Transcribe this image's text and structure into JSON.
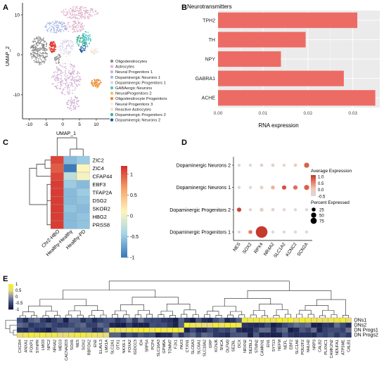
{
  "panels": {
    "A": "A",
    "B": "B",
    "C": "C",
    "D": "D",
    "E": "E"
  },
  "chart_data": [
    {
      "panel": "A",
      "type": "scatter",
      "xlabel": "UMAP_1",
      "ylabel": "UMAP_2",
      "xlim": [
        -12,
        14
      ],
      "ylim": [
        -16,
        13
      ],
      "xticks": [
        -10,
        -5,
        0,
        5,
        10
      ],
      "yticks": [
        -10,
        0,
        10
      ],
      "legend_position": "right",
      "series": [
        {
          "name": "Oligodendrocytes",
          "color": "#8c8c8c"
        },
        {
          "name": "Astrocytes",
          "color": "#e0b6ce"
        },
        {
          "name": "Neural Progenitors 1",
          "color": "#d2b0d6"
        },
        {
          "name": "Dopaminergic Neurons 1",
          "color": "#a7b8e6"
        },
        {
          "name": "Dopaminergic Progenitors 1",
          "color": "#e0d2ea"
        },
        {
          "name": "GABAergic Neurons",
          "color": "#52c4c6"
        },
        {
          "name": "NeuralProgenitors 2",
          "color": "#efc060"
        },
        {
          "name": "Oligodendrocyte Progenitors",
          "color": "#ee8833"
        },
        {
          "name": "Neural Progenitors 3",
          "color": "#eeeeee"
        },
        {
          "name": "Reactive Astrocytes",
          "color": "#f0e2d4"
        },
        {
          "name": "Dopaminergic Progenitors 2",
          "color": "#3bb099"
        },
        {
          "name": "Dopaminergic Neurons 2",
          "color": "#1e5a9a"
        }
      ]
    },
    {
      "panel": "B",
      "type": "bar",
      "title": "Neurotransmitters",
      "xlabel": "RNA expression",
      "ylabel": "",
      "orientation": "horizontal",
      "categories": [
        "TPH2",
        "TH",
        "NPY",
        "GABRA1",
        "ACHE"
      ],
      "values": [
        0.031,
        0.0195,
        0.014,
        0.028,
        0.035
      ],
      "xlim": [
        0,
        0.036
      ],
      "xticks": [
        "0.00",
        "0.01",
        "0.02",
        "0.03"
      ],
      "color": "#ec6c65"
    },
    {
      "panel": "C",
      "type": "heatmap",
      "columns": [
        "Chr2-HBO",
        "Healthy-Healthy",
        "Healthy-PD"
      ],
      "rows": [
        "ZIC2",
        "ZIC4",
        "CFAP44",
        "EBF3",
        "TFAP2A",
        "DSG2",
        "SKOR2",
        "HBG2",
        "PRSS8"
      ],
      "values": [
        [
          1.1,
          -0.6,
          -0.5
        ],
        [
          1.0,
          -1.0,
          0.1
        ],
        [
          1.1,
          -0.3,
          0.05
        ],
        [
          1.15,
          -0.5,
          -0.6
        ],
        [
          1.15,
          -0.6,
          -0.5
        ],
        [
          1.15,
          -0.6,
          -0.55
        ],
        [
          1.15,
          -0.55,
          -0.6
        ],
        [
          1.15,
          -0.6,
          -0.55
        ],
        [
          1.15,
          -0.6,
          -0.55
        ]
      ],
      "scale_range": [
        -1,
        1.2
      ],
      "scale_ticks": [
        "1",
        "0.5",
        "0",
        "-0.5",
        "-1"
      ],
      "colors": [
        "#3f7ab9",
        "#a4d4e8",
        "#fdf5bd",
        "#f7a56a",
        "#d6312d"
      ]
    },
    {
      "panel": "D",
      "type": "scatter",
      "subtype": "dot",
      "rows": [
        "Dopaminergic Neurons 2",
        "Dopaminergic Neurons 1",
        "Dopaminergic Progenitors 2",
        "Dopaminergic Progenitors 1"
      ],
      "columns": [
        "NES",
        "SOX2",
        "RPX4",
        "NR4A2",
        "SLC1A2",
        "KCNC2",
        "SCN2A"
      ],
      "avg_expr_title": "Average Expression",
      "avg_expr_ticks": [
        "1.0",
        "0.5",
        "0.0",
        "-0.5"
      ],
      "pct_title": "Percent Expressed",
      "pct_ticks": [
        "25",
        "50",
        "75"
      ],
      "points": [
        {
          "row": "Dopaminergic Neurons 2",
          "col": "NES",
          "pct": 3,
          "expr": -0.4
        },
        {
          "row": "Dopaminergic Neurons 2",
          "col": "SOX2",
          "pct": 3,
          "expr": -0.4
        },
        {
          "row": "Dopaminergic Neurons 2",
          "col": "RPX4",
          "pct": 4,
          "expr": -0.2
        },
        {
          "row": "Dopaminergic Neurons 2",
          "col": "NR4A2",
          "pct": 4,
          "expr": -0.2
        },
        {
          "row": "Dopaminergic Neurons 2",
          "col": "SLC1A2",
          "pct": 3,
          "expr": -0.3
        },
        {
          "row": "Dopaminergic Neurons 2",
          "col": "KCNC2",
          "pct": 4,
          "expr": 0.0
        },
        {
          "row": "Dopaminergic Neurons 2",
          "col": "SCN2A",
          "pct": 12,
          "expr": 0.8
        },
        {
          "row": "Dopaminergic Neurons 1",
          "col": "NES",
          "pct": 3,
          "expr": -0.4
        },
        {
          "row": "Dopaminergic Neurons 1",
          "col": "SOX2",
          "pct": 3,
          "expr": -0.4
        },
        {
          "row": "Dopaminergic Neurons 1",
          "col": "RPX4",
          "pct": 5,
          "expr": -0.3
        },
        {
          "row": "Dopaminergic Neurons 1",
          "col": "NR4A2",
          "pct": 6,
          "expr": 0.2
        },
        {
          "row": "Dopaminergic Neurons 1",
          "col": "SLC1A2",
          "pct": 8,
          "expr": 0.9
        },
        {
          "row": "Dopaminergic Neurons 1",
          "col": "KCNC2",
          "pct": 8,
          "expr": 0.7
        },
        {
          "row": "Dopaminergic Neurons 1",
          "col": "SCN2A",
          "pct": 12,
          "expr": 0.8
        },
        {
          "row": "Dopaminergic Progenitors 2",
          "col": "NES",
          "pct": 8,
          "expr": 1.0
        },
        {
          "row": "Dopaminergic Progenitors 2",
          "col": "SOX2",
          "pct": 3,
          "expr": -0.4
        },
        {
          "row": "Dopaminergic Progenitors 2",
          "col": "RPX4",
          "pct": 6,
          "expr": -0.2
        },
        {
          "row": "Dopaminergic Progenitors 2",
          "col": "NR4A2",
          "pct": 4,
          "expr": -0.3
        },
        {
          "row": "Dopaminergic Progenitors 2",
          "col": "SLC1A2",
          "pct": 3,
          "expr": -0.4
        },
        {
          "row": "Dopaminergic Progenitors 2",
          "col": "KCNC2",
          "pct": 3,
          "expr": -0.4
        },
        {
          "row": "Dopaminergic Progenitors 2",
          "col": "SCN2A",
          "pct": 3,
          "expr": -0.4
        },
        {
          "row": "Dopaminergic Progenitors 1",
          "col": "NES",
          "pct": 3,
          "expr": -0.4
        },
        {
          "row": "Dopaminergic Progenitors 1",
          "col": "SOX2",
          "pct": 6,
          "expr": 0.6
        },
        {
          "row": "Dopaminergic Progenitors 1",
          "col": "RPX4",
          "pct": 80,
          "expr": 1.1
        },
        {
          "row": "Dopaminergic Progenitors 1",
          "col": "NR4A2",
          "pct": 3,
          "expr": -0.4
        },
        {
          "row": "Dopaminergic Progenitors 1",
          "col": "SLC1A2",
          "pct": 3,
          "expr": -0.4
        },
        {
          "row": "Dopaminergic Progenitors 1",
          "col": "KCNC2",
          "pct": 3,
          "expr": -0.4
        },
        {
          "row": "Dopaminergic Progenitors 1",
          "col": "SCN2A",
          "pct": 3,
          "expr": -0.4
        }
      ]
    },
    {
      "panel": "E",
      "type": "heatmap",
      "rows": [
        "DNs1",
        "DNs2",
        "DN Progs1",
        "DN Progs2"
      ],
      "columns": [
        "CXCR4",
        "ANXA1",
        "FOXP1",
        "SYNPR",
        "LMO3",
        "NPC2",
        "NR4A2",
        "MEG3",
        "CACNA2D3",
        "SOX6",
        "NES",
        "SOX2",
        "RBFOX2",
        "EN2",
        "ELAVL3",
        "LMX1A",
        "SLC2A1",
        "OTX1",
        "NKX6-1",
        "FOXA2",
        "IGDCC3",
        "ID4",
        "SRP54",
        "PCP4",
        "SLC16A3",
        "GPM6A",
        "TOMM7",
        "FJX1",
        "PAX3",
        "CTXN1",
        "SLC6A3",
        "SLC6A1",
        "SLC18A2",
        "GRP",
        "KCNJ6",
        "SNCA",
        "OLFM3",
        "SEZ6L",
        "DCX",
        "NRXN2",
        "SEZ6L2",
        "STMN2",
        "CAMKN1",
        "EN1",
        "SYT13",
        "NEFM",
        "NEFL",
        "EBF2",
        "SLC1A6",
        "POU2F2",
        "NHLH2",
        "NRP3",
        "CALB2",
        "PLXNC1",
        "CAMK2N2",
        "NDUFA1",
        "ATP5ME",
        "CALB1"
      ],
      "scale_ticks": [
        "1",
        "0.5",
        "0",
        "-0.5",
        "-1"
      ],
      "colors": [
        "#141a4a",
        "#3b4b7a",
        "#8a90a0",
        "#e8dd78",
        "#f7ef2a"
      ]
    }
  ]
}
